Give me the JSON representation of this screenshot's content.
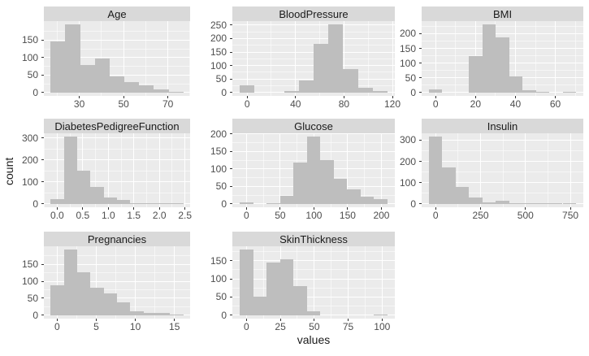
{
  "chart_data": {
    "type": "histogram",
    "xlabel": "values",
    "ylabel": "count",
    "facet_layout": "facet_wrap, 3 columns, free x and y scales, 8 panels",
    "colors": {
      "panel_bg": "#ebebeb",
      "strip_bg": "#d9d9d9",
      "bar_fill": "#bebebe",
      "grid": "#ffffff",
      "axis_text": "#4d4d4d",
      "title_text": "#1a1a1a",
      "tick_mark": "#333333"
    },
    "facets": [
      {
        "title": "Age",
        "bin_start": 17,
        "bin_width": 6.67,
        "counts": [
          146,
          195,
          78,
          97,
          46,
          29,
          20,
          9,
          2
        ],
        "xticks": [
          30,
          50,
          70
        ],
        "xtick_labels": [
          "30",
          "50",
          "70"
        ],
        "yticks": [
          0,
          50,
          100,
          150
        ],
        "ytick_labels": [
          "0",
          "50",
          "100",
          "150"
        ]
      },
      {
        "title": "BloodPressure",
        "bin_start": -6.1,
        "bin_width": 12.2,
        "counts": [
          28,
          0,
          0,
          6,
          46,
          181,
          252,
          87,
          17,
          4
        ],
        "xticks": [
          0,
          40,
          80,
          120
        ],
        "xtick_labels": [
          "0",
          "40",
          "80",
          "120"
        ],
        "yticks": [
          0,
          50,
          100,
          150,
          200,
          250
        ],
        "ytick_labels": [
          "0",
          "50",
          "100",
          "150",
          "200",
          "250"
        ]
      },
      {
        "title": "BMI",
        "bin_start": -3.35,
        "bin_width": 6.7,
        "counts": [
          10,
          0,
          0,
          125,
          231,
          186,
          55,
          8,
          2,
          0,
          1
        ],
        "xticks": [
          0,
          20,
          40,
          60
        ],
        "xtick_labels": [
          "0",
          "20",
          "40",
          "60"
        ],
        "yticks": [
          0,
          50,
          100,
          150,
          200
        ],
        "ytick_labels": [
          "0",
          "50",
          "100",
          "150",
          "200"
        ]
      },
      {
        "title": "DiabetesPedigreeFunction",
        "bin_start": -0.13,
        "bin_width": 0.26,
        "counts": [
          20,
          306,
          150,
          79,
          30,
          17,
          5,
          3,
          2,
          2
        ],
        "xticks": [
          0,
          0.5,
          1,
          1.5,
          2,
          2.5
        ],
        "xtick_labels": [
          "0.0",
          "0.5",
          "1.0",
          "1.5",
          "2.0",
          "2.5"
        ],
        "yticks": [
          0,
          100,
          200,
          300
        ],
        "ytick_labels": [
          "0",
          "100",
          "200",
          "300"
        ]
      },
      {
        "title": "Glucose",
        "bin_start": -9.95,
        "bin_width": 19.9,
        "counts": [
          5,
          0,
          3,
          23,
          119,
          192,
          126,
          71,
          42,
          21,
          13
        ],
        "xticks": [
          0,
          50,
          100,
          150,
          200
        ],
        "xtick_labels": [
          "0",
          "50",
          "100",
          "150",
          "200"
        ],
        "yticks": [
          0,
          50,
          100,
          150,
          200
        ],
        "ytick_labels": [
          "0",
          "50",
          "100",
          "150",
          "200"
        ]
      },
      {
        "title": "Insulin",
        "bin_start": -37.2,
        "bin_width": 74.4,
        "counts": [
          316,
          171,
          79,
          30,
          8,
          13,
          5,
          3,
          2,
          2,
          2
        ],
        "xticks": [
          0,
          250,
          500,
          750
        ],
        "xtick_labels": [
          "0",
          "250",
          "500",
          "750"
        ],
        "yticks": [
          0,
          100,
          200,
          300
        ],
        "ytick_labels": [
          "0",
          "100",
          "200",
          "300"
        ]
      },
      {
        "title": "Pregnancies",
        "bin_start": -0.85,
        "bin_width": 1.7,
        "counts": [
          88,
          193,
          126,
          81,
          64,
          39,
          13,
          8,
          7,
          2
        ],
        "xticks": [
          0,
          5,
          10,
          15
        ],
        "xtick_labels": [
          "0",
          "5",
          "10",
          "15"
        ],
        "yticks": [
          0,
          50,
          100,
          150
        ],
        "ytick_labels": [
          "0",
          "50",
          "100",
          "150"
        ]
      },
      {
        "title": "SkinThickness",
        "bin_start": -4.95,
        "bin_width": 9.9,
        "counts": [
          180,
          52,
          145,
          153,
          80,
          10,
          0,
          0,
          0,
          0,
          2
        ],
        "xticks": [
          0,
          25,
          50,
          75,
          100
        ],
        "xtick_labels": [
          "0",
          "25",
          "50",
          "75",
          "100"
        ],
        "yticks": [
          0,
          50,
          100,
          150
        ],
        "ytick_labels": [
          "0",
          "50",
          "100",
          "150"
        ]
      }
    ]
  }
}
